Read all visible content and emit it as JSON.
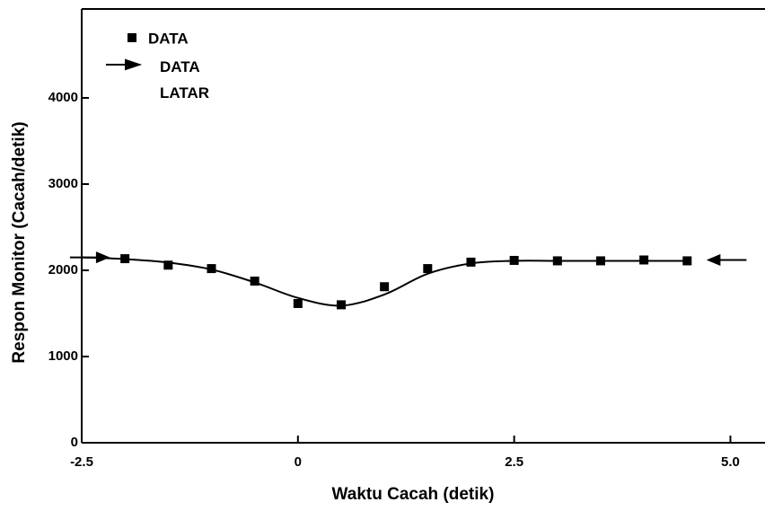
{
  "chart_data": {
    "type": "scatter",
    "xlabel": "Waktu Cacah (detik)",
    "ylabel": "Respon Monitor (Cacah/detik)",
    "xlim": [
      -2.5,
      5.4
    ],
    "ylim": [
      0,
      5000
    ],
    "xticks": [
      -2.5,
      0,
      2.5,
      {
        "value": 5,
        "label": "5.0"
      }
    ],
    "yticks": [
      0,
      1000,
      2000,
      3000,
      4000
    ],
    "series": [
      {
        "name": "DATA",
        "color": "#000000",
        "marker": "square",
        "x": [
          -2,
          -1.5,
          -1,
          -0.5,
          0,
          0.5,
          1,
          1.5,
          2,
          2.5,
          3,
          3.5,
          4,
          4.5
        ],
        "values": [
          2135,
          2060,
          2020,
          1875,
          1615,
          1600,
          1810,
          2020,
          2095,
          2115,
          2110,
          2110,
          2120,
          2110
        ]
      },
      {
        "name": "DATA LATAR",
        "color": "#000000",
        "marker": "arrow",
        "x": [
          -2.2,
          4.75
        ],
        "values": [
          2150,
          2120
        ]
      },
      {
        "color": "#000000",
        "marker": "line",
        "x": [
          -2.5,
          -2,
          -1.5,
          -1,
          -0.5,
          0,
          0.5,
          1,
          1.5,
          2,
          2.5,
          3,
          3.5,
          4,
          4.5
        ],
        "values": [
          2150,
          2130,
          2090,
          2010,
          1860,
          1680,
          1590,
          1720,
          1960,
          2080,
          2110,
          2110,
          2110,
          2110,
          2110
        ]
      }
    ]
  }
}
